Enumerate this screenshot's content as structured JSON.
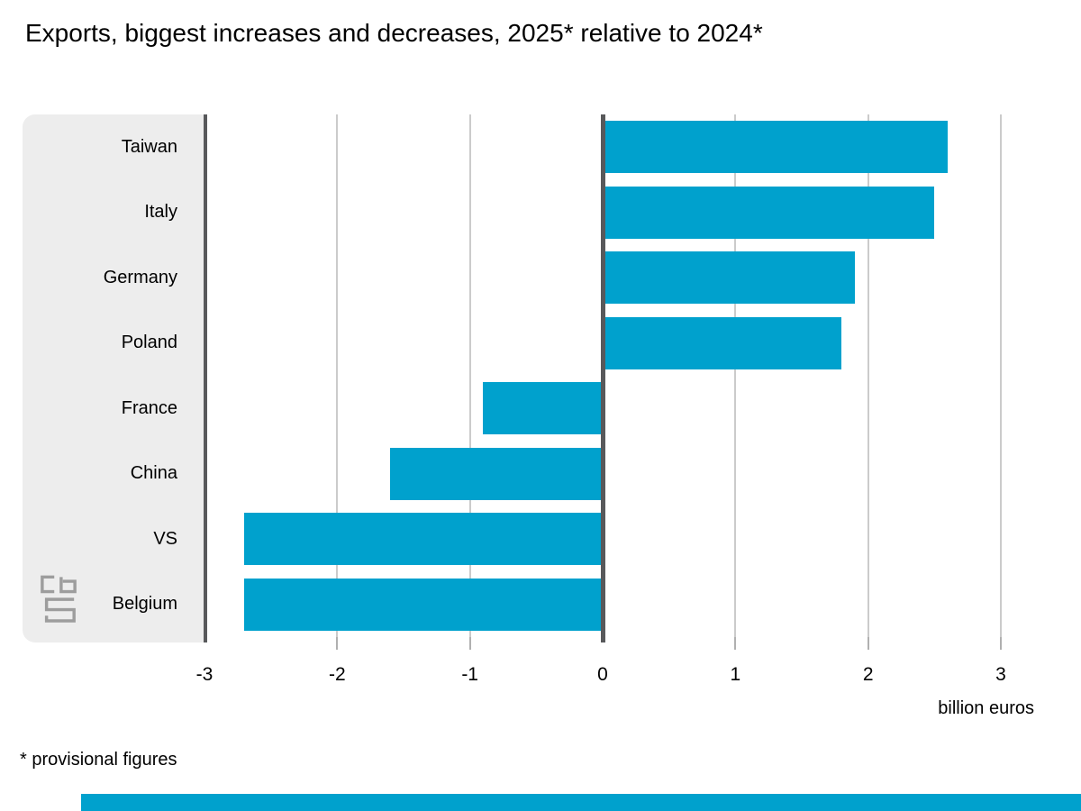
{
  "title": "Exports, biggest increases and decreases, 2025* relative to 2024*",
  "footnote": "* provisional figures",
  "colors": {
    "bar": "#00a1cd",
    "axis_dark": "#58595b",
    "gridline": "#cbcbcb",
    "tick": "#b0b0b0",
    "panel_bg": "#ededed",
    "logo_gray": "#9d9d9d",
    "footer_strip": "#00a1cd"
  },
  "chart_data": {
    "type": "bar",
    "orientation": "horizontal",
    "title": "Exports, biggest increases and decreases, 2025* relative to 2024*",
    "categories": [
      "Taiwan",
      "Italy",
      "Germany",
      "Poland",
      "France",
      "China",
      "VS",
      "Belgium"
    ],
    "values": [
      2.6,
      2.5,
      1.9,
      1.8,
      -0.9,
      -1.6,
      -2.7,
      -2.7
    ],
    "xlabel": "billion euros",
    "xlim": [
      -3,
      3.25
    ],
    "xticks": [
      -3,
      -2,
      -1,
      0,
      1,
      2,
      3
    ],
    "grid": true,
    "legend": false,
    "footnote": "* provisional figures"
  }
}
